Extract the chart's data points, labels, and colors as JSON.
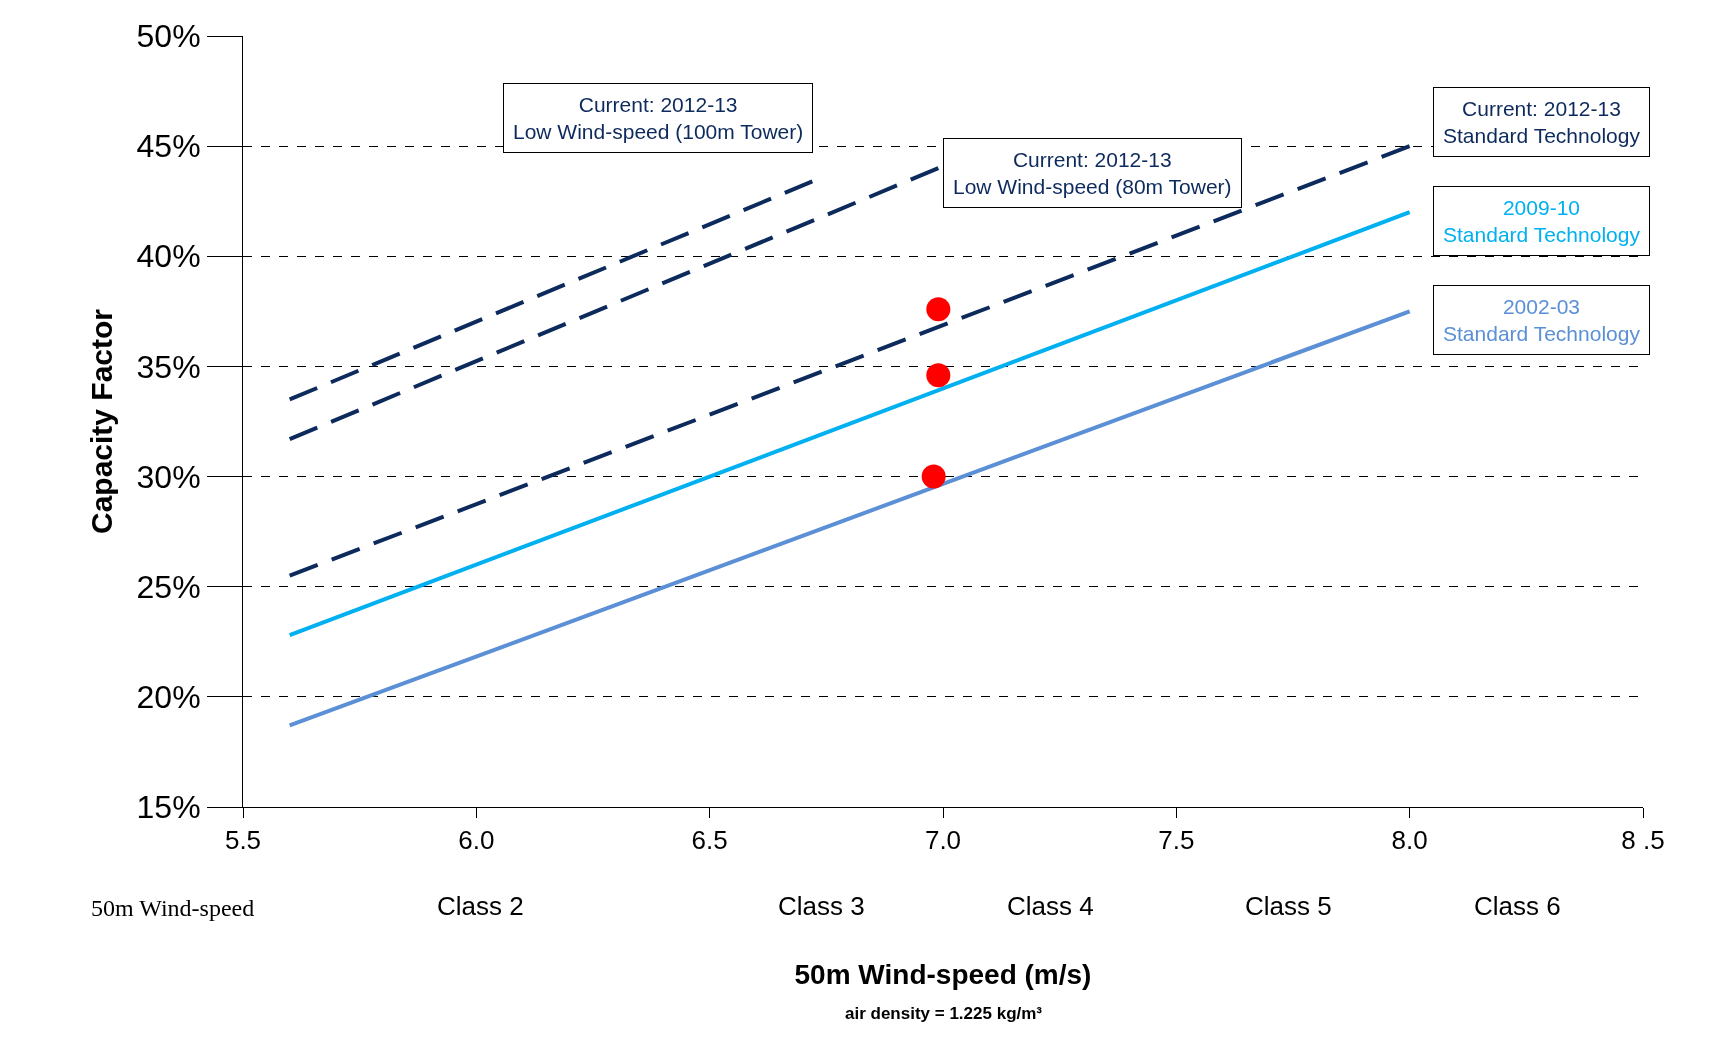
{
  "chart_data": {
    "type": "line",
    "xlabel": "50m Wind-speed (m/s)",
    "ylabel": "Capacity Factor",
    "xlim": [
      5.5,
      8.5
    ],
    "xticks": [
      {
        "value": 5.5,
        "label": "5.5"
      },
      {
        "value": 6.0,
        "label": "6.0"
      },
      {
        "value": 6.5,
        "label": "6.5"
      },
      {
        "value": 7.0,
        "label": "7.0"
      },
      {
        "value": 7.5,
        "label": "7.5"
      },
      {
        "value": 8.0,
        "label": "8.0"
      },
      {
        "value": 8.5,
        "label": "8 .5"
      }
    ],
    "ylim": [
      15,
      50
    ],
    "yticks": [
      {
        "value": 15,
        "label": "15%"
      },
      {
        "value": 20,
        "label": "20%"
      },
      {
        "value": 25,
        "label": "25%"
      },
      {
        "value": 30,
        "label": "30%"
      },
      {
        "value": 35,
        "label": "35%"
      },
      {
        "value": 40,
        "label": "40%"
      },
      {
        "value": 45,
        "label": "45%"
      },
      {
        "value": 50,
        "label": "50%"
      }
    ],
    "grid": "y",
    "legend": false,
    "marker": "none",
    "series": [
      {
        "name": "Current: 2012-13\nLow Wind-speed (100m Tower)",
        "color": "#0d2a5c",
        "line_style": "dashed",
        "x": [
          5.6,
          6.72
        ],
        "values": [
          33.5,
          43.4
        ]
      },
      {
        "name": "Current: 2012-13\nLow Wind-speed (80m Tower)",
        "color": "#0d2a5c",
        "line_style": "dashed",
        "x": [
          5.6,
          6.99
        ],
        "values": [
          31.7,
          44.0
        ]
      },
      {
        "name": "Current: 2012-13\nStandard Technology",
        "color": "#0d2a5c",
        "line_style": "dashed",
        "x": [
          5.6,
          8.0
        ],
        "values": [
          25.5,
          45.0
        ]
      },
      {
        "name": "2009-10\nStandard Technology",
        "color": "#00b0f0",
        "line_style": "solid",
        "x": [
          5.6,
          8.0
        ],
        "values": [
          22.8,
          42.0
        ]
      },
      {
        "name": "2002-03\nStandard Technology",
        "color": "#5b8fd6",
        "line_style": "solid",
        "x": [
          5.6,
          8.0
        ],
        "values": [
          18.7,
          37.5
        ]
      },
      {
        "type": "scatter",
        "marker": "circle",
        "color": "#ff0000",
        "x": [
          6.99,
          6.99,
          6.98
        ],
        "values": [
          37.6,
          34.6,
          30.0
        ]
      }
    ],
    "annotations": [
      "50m Wind-speed",
      "Class 2",
      "Class 3",
      "Class 4",
      "Class 5",
      "Class 6",
      "air density = 1.225 kg/m³"
    ]
  }
}
